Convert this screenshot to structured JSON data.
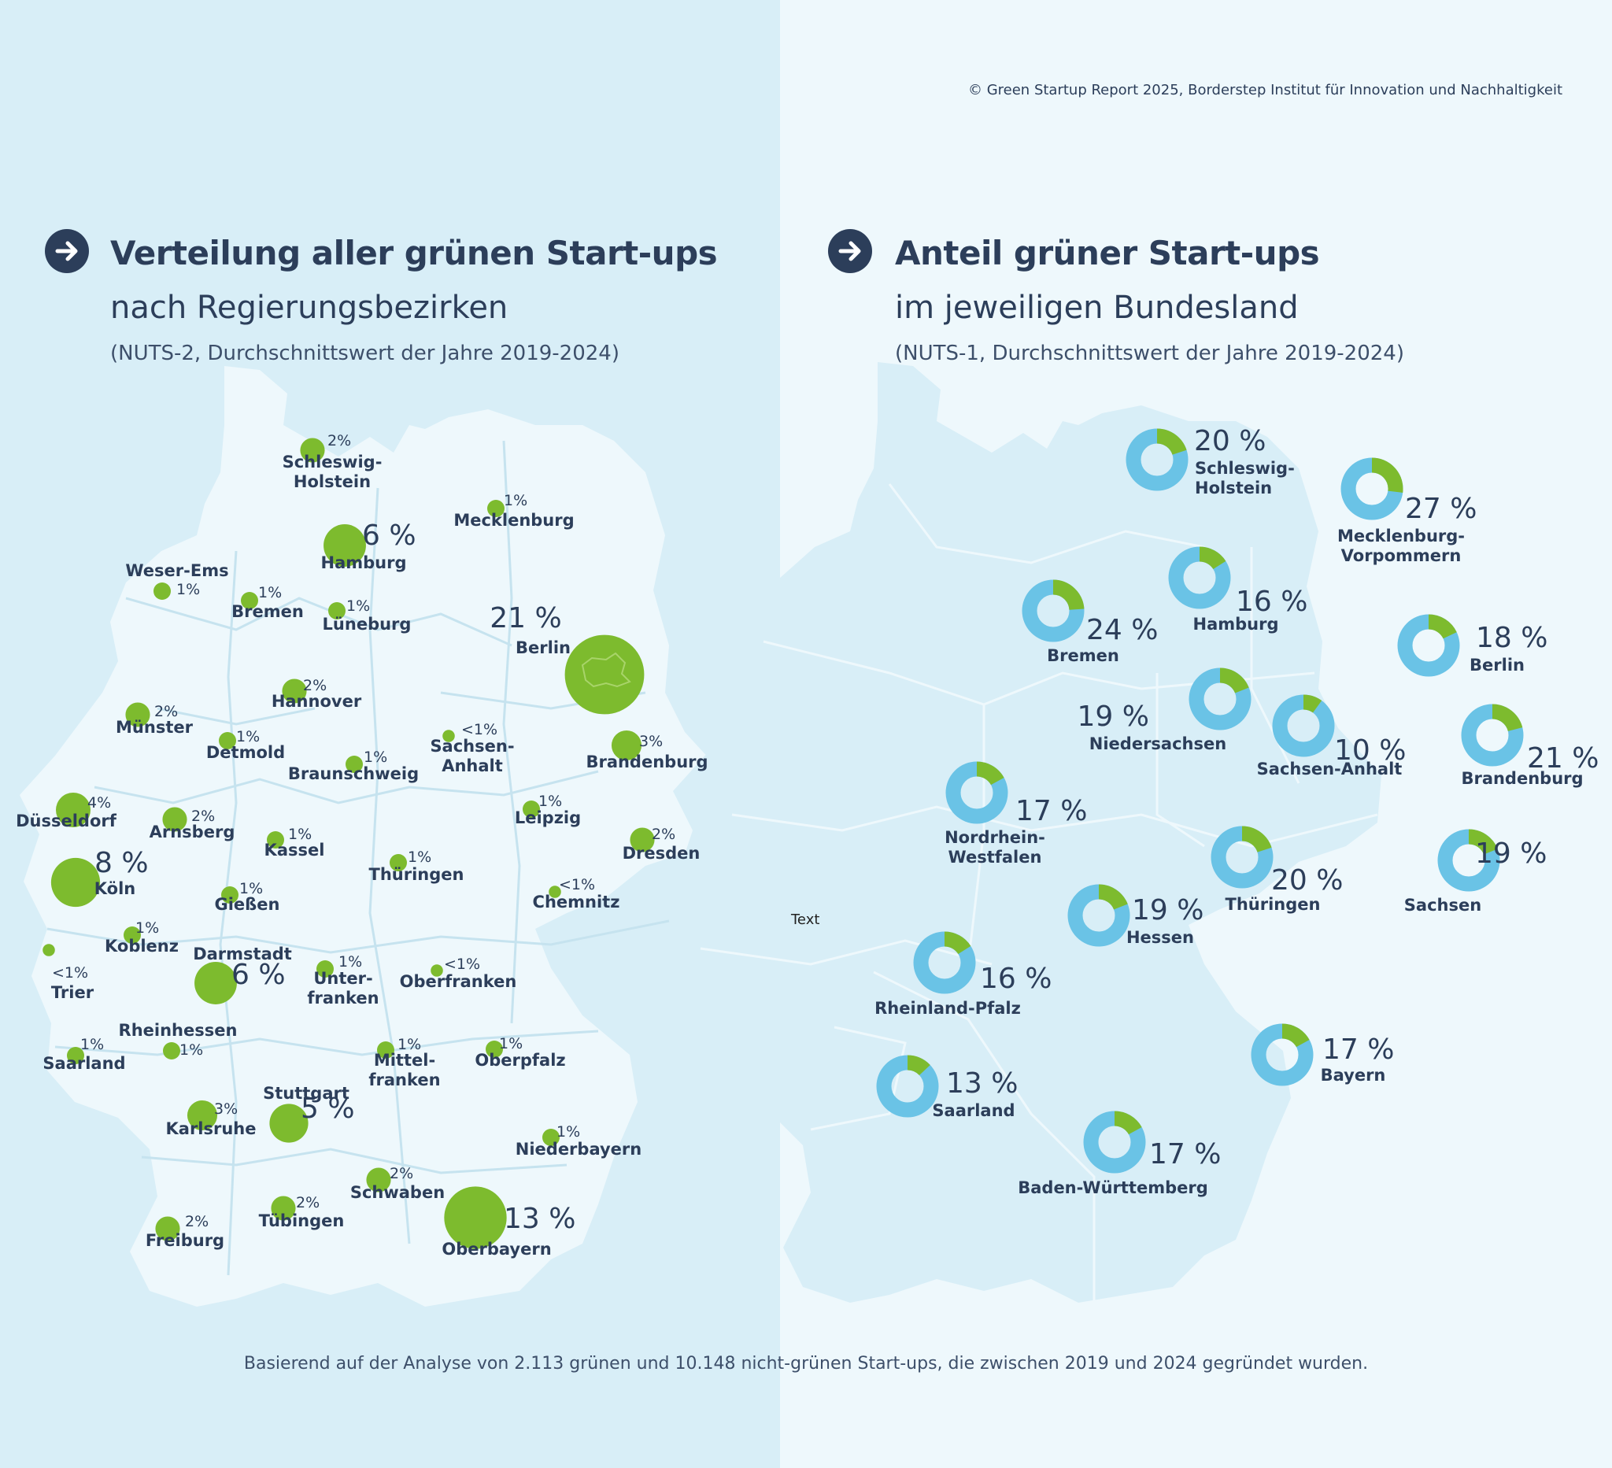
{
  "copyright": "© Green Startup Report 2025, Borderstep Institut für Innovation und Nachhaltigkeit",
  "colors": {
    "green": "#7dbb2e",
    "blue": "#6ac3e6",
    "navy": "#2c3e5a",
    "land_left": "#eef8fc",
    "land_right": "#d8eef7"
  },
  "icons": {
    "header": "arrow-right-circle-icon"
  },
  "left": {
    "title": "Verteilung aller grünen Start-ups",
    "subtitle": "nach Regierungsbezirken",
    "note": "(NUTS-2, Durchschnittswert der Jahre 2019-2024)",
    "regions": [
      {
        "name": "Schleswig-\nHolstein",
        "value": "2%",
        "share": 2
      },
      {
        "name": "Mecklenburg",
        "value": "1%",
        "share": 1
      },
      {
        "name": "Hamburg",
        "value": "6 %",
        "share": 6
      },
      {
        "name": "Weser-Ems",
        "value": "1%",
        "share": 1
      },
      {
        "name": "Bremen",
        "value": "1%",
        "share": 1
      },
      {
        "name": "Lüneburg",
        "value": "1%",
        "share": 1
      },
      {
        "name": "Berlin",
        "value": "21 %",
        "share": 21
      },
      {
        "name": "Hannover",
        "value": "2%",
        "share": 2
      },
      {
        "name": "Münster",
        "value": "2%",
        "share": 2
      },
      {
        "name": "Detmold",
        "value": "1%",
        "share": 1
      },
      {
        "name": "Braunschweig",
        "value": "1%",
        "share": 1
      },
      {
        "name": "Sachsen-\nAnhalt",
        "value": "<1%",
        "share": 0.5
      },
      {
        "name": "Brandenburg",
        "value": "3%",
        "share": 3
      },
      {
        "name": "Düsseldorf",
        "value": "4%",
        "share": 4
      },
      {
        "name": "Arnsberg",
        "value": "2%",
        "share": 2
      },
      {
        "name": "Kassel",
        "value": "1%",
        "share": 1
      },
      {
        "name": "Leipzig",
        "value": "1%",
        "share": 1
      },
      {
        "name": "Dresden",
        "value": "2%",
        "share": 2
      },
      {
        "name": "Köln",
        "value": "8 %",
        "share": 8
      },
      {
        "name": "Thüringen",
        "value": "1%",
        "share": 1
      },
      {
        "name": "Gießen",
        "value": "1%",
        "share": 1
      },
      {
        "name": "Chemnitz",
        "value": "<1%",
        "share": 0.5
      },
      {
        "name": "Koblenz",
        "value": "1%",
        "share": 1
      },
      {
        "name": "Darmstadt",
        "value": "6 %",
        "share": 6
      },
      {
        "name": "Trier",
        "value": "<1%",
        "share": 0.5
      },
      {
        "name": "Unter-\nfranken",
        "value": "1%",
        "share": 1
      },
      {
        "name": "Oberfranken",
        "value": "<1%",
        "share": 0.5
      },
      {
        "name": "Rheinhessen",
        "value": "1%",
        "share": 1
      },
      {
        "name": "Saarland",
        "value": "1%",
        "share": 1
      },
      {
        "name": "Mittel-\nfranken",
        "value": "1%",
        "share": 1
      },
      {
        "name": "Oberpfalz",
        "value": "1%",
        "share": 1
      },
      {
        "name": "Stuttgart",
        "value": "5 %",
        "share": 5
      },
      {
        "name": "Karlsruhe",
        "value": "3%",
        "share": 3
      },
      {
        "name": "Niederbayern",
        "value": "1%",
        "share": 1
      },
      {
        "name": "Schwaben",
        "value": "2%",
        "share": 2
      },
      {
        "name": "Tübingen",
        "value": "2%",
        "share": 2
      },
      {
        "name": "Freiburg",
        "value": "2%",
        "share": 2
      },
      {
        "name": "Oberbayern",
        "value": "13 %",
        "share": 13
      }
    ]
  },
  "right": {
    "title": "Anteil grüner Start-ups",
    "subtitle": "im jeweiligen Bundesland",
    "note": "(NUTS-1, Durchschnittswert der Jahre 2019-2024)",
    "states": [
      {
        "name": "Schleswig-\nHolstein",
        "value": "20 %",
        "share": 20
      },
      {
        "name": "Mecklenburg-\nVorpommern",
        "value": "27 %",
        "share": 27
      },
      {
        "name": "Hamburg",
        "value": "16 %",
        "share": 16
      },
      {
        "name": "Bremen",
        "value": "24 %",
        "share": 24
      },
      {
        "name": "Berlin",
        "value": "18 %",
        "share": 18
      },
      {
        "name": "Niedersachsen",
        "value": "19 %",
        "share": 19
      },
      {
        "name": "Sachsen-Anhalt",
        "value": "10 %",
        "share": 10
      },
      {
        "name": "Brandenburg",
        "value": "21 %",
        "share": 21
      },
      {
        "name": "Nordrhein-\nWestfalen",
        "value": "17 %",
        "share": 17
      },
      {
        "name": "Thüringen",
        "value": "20 %",
        "share": 20
      },
      {
        "name": "Sachsen",
        "value": "19 %",
        "share": 19
      },
      {
        "name": "Hessen",
        "value": "19 %",
        "share": 19
      },
      {
        "name": "Rheinland-Pfalz",
        "value": "16 %",
        "share": 16
      },
      {
        "name": "Bayern",
        "value": "17 %",
        "share": 17
      },
      {
        "name": "Saarland",
        "value": "13 %",
        "share": 13
      },
      {
        "name": "Baden-Württemberg",
        "value": "17 %",
        "share": 17
      }
    ]
  },
  "stray_text": "Text",
  "footnote": "Basierend auf der Analyse von 2.113 grünen und 10.148 nicht-grünen Start-ups, die zwischen 2019 und 2024 gegründet wurden."
}
